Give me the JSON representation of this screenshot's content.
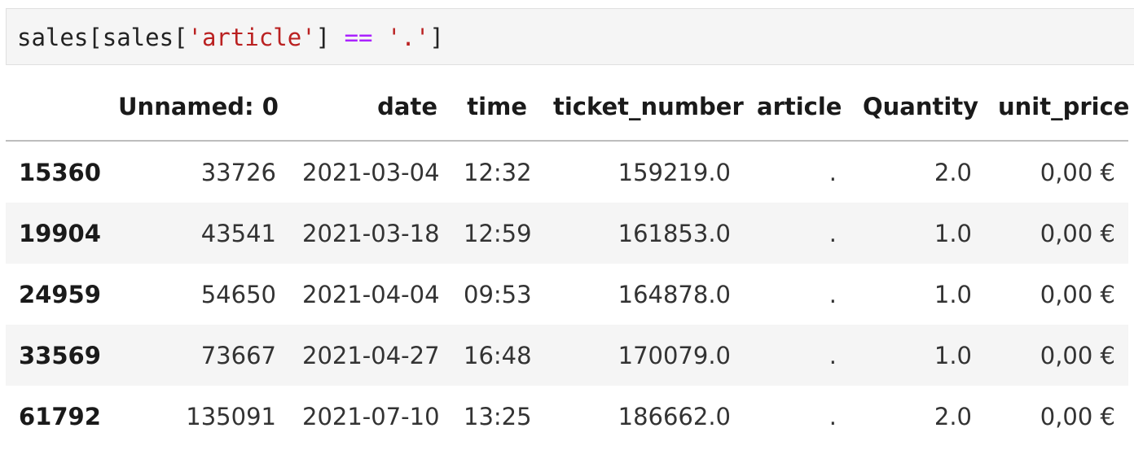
{
  "code_cell": {
    "tokens": [
      {
        "text": "sales[sales[",
        "kind": "plain"
      },
      {
        "text": "'article'",
        "kind": "string"
      },
      {
        "text": "] ",
        "kind": "plain"
      },
      {
        "text": "==",
        "kind": "operator"
      },
      {
        "text": " ",
        "kind": "plain"
      },
      {
        "text": "'.'",
        "kind": "string"
      },
      {
        "text": "]",
        "kind": "plain"
      }
    ],
    "colors": {
      "string": "#ba2121",
      "operator": "#aa22ff",
      "plain": "#222222",
      "background": "#f5f5f5"
    }
  },
  "output_table": {
    "index_header": "",
    "columns": [
      "Unnamed: 0",
      "date",
      "time",
      "ticket_number",
      "article",
      "Quantity",
      "unit_price"
    ],
    "rows": [
      {
        "index": "15360",
        "cells": [
          "33726",
          "2021-03-04",
          "12:32",
          "159219.0",
          ".",
          "2.0",
          "0,00 €"
        ]
      },
      {
        "index": "19904",
        "cells": [
          "43541",
          "2021-03-18",
          "12:59",
          "161853.0",
          ".",
          "1.0",
          "0,00 €"
        ]
      },
      {
        "index": "24959",
        "cells": [
          "54650",
          "2021-04-04",
          "09:53",
          "164878.0",
          ".",
          "1.0",
          "0,00 €"
        ]
      },
      {
        "index": "33569",
        "cells": [
          "73667",
          "2021-04-27",
          "16:48",
          "170079.0",
          ".",
          "1.0",
          "0,00 €"
        ]
      },
      {
        "index": "61792",
        "cells": [
          "135091",
          "2021-07-10",
          "13:25",
          "186662.0",
          ".",
          "2.0",
          "0,00 €"
        ]
      }
    ],
    "colors": {
      "stripe": "#f5f5f5",
      "header_rule": "#bdbdbd"
    }
  }
}
